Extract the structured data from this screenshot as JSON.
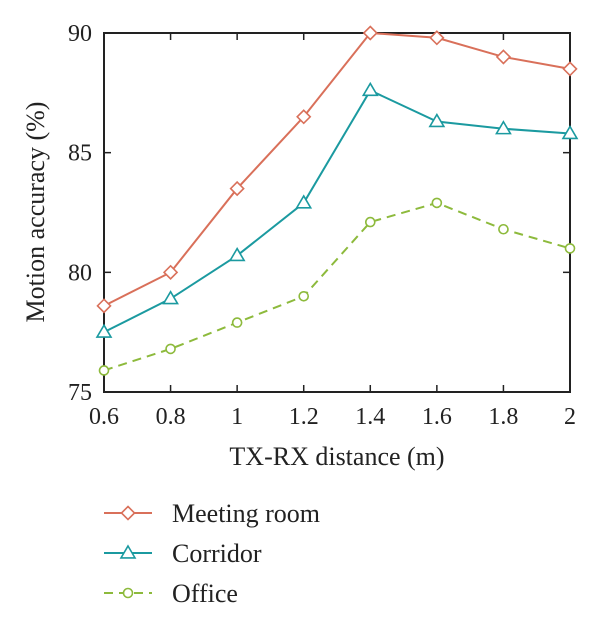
{
  "chart_data": {
    "type": "line",
    "xlabel": "TX-RX distance (m)",
    "ylabel": "Motion accuracy (%)",
    "x": [
      0.6,
      0.8,
      1.0,
      1.2,
      1.4,
      1.6,
      1.8,
      2.0
    ],
    "x_tick_labels": [
      "0.6",
      "0.8",
      "1",
      "1.2",
      "1.4",
      "1.6",
      "1.8",
      "2"
    ],
    "y_ticks": [
      75,
      80,
      85,
      90
    ],
    "xlim": [
      0.6,
      2.0
    ],
    "ylim": [
      75,
      90
    ],
    "grid": false,
    "legend_position": "below",
    "series": [
      {
        "name": "Meeting room",
        "values": [
          78.6,
          80.0,
          83.5,
          86.5,
          90.0,
          89.8,
          89.0,
          88.5
        ],
        "color": "#d9705a",
        "marker": "diamond",
        "dash": "solid"
      },
      {
        "name": "Corridor",
        "values": [
          77.5,
          78.9,
          80.7,
          82.9,
          87.6,
          86.3,
          86.0,
          85.8
        ],
        "color": "#1b9aa0",
        "marker": "triangle",
        "dash": "solid"
      },
      {
        "name": "Office",
        "values": [
          75.9,
          76.8,
          77.9,
          79.0,
          82.1,
          82.9,
          81.8,
          81.0
        ],
        "color": "#8dba3c",
        "marker": "circle",
        "dash": "dashed"
      }
    ]
  }
}
